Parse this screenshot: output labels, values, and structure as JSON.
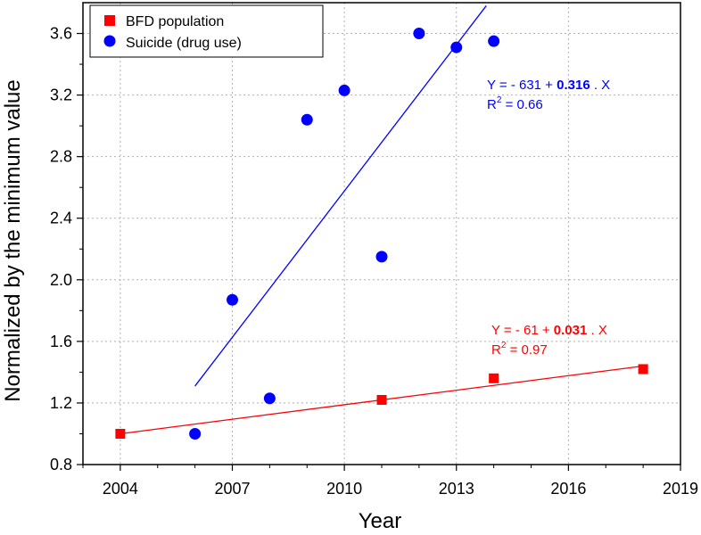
{
  "chart_data": {
    "type": "scatter",
    "xlabel": "Year",
    "ylabel": "Normalized by the minimum value",
    "xlim": [
      2003,
      2019
    ],
    "ylim": [
      0.8,
      3.8
    ],
    "xticks": [
      2004,
      2007,
      2010,
      2013,
      2016,
      2019
    ],
    "yticks": [
      0.8,
      1.2,
      1.6,
      2.0,
      2.4,
      2.8,
      3.2,
      3.6
    ],
    "grid": true,
    "legend_position": "top-left",
    "series": [
      {
        "name": "BFD population",
        "marker": "square",
        "color": "#ff0000",
        "x": [
          2004,
          2011,
          2014,
          2018
        ],
        "y": [
          1.0,
          1.22,
          1.36,
          1.42
        ],
        "fit": {
          "x": [
            2004,
            2018
          ],
          "y": [
            1.0,
            1.44
          ],
          "eq_prefix": "Y = - 61 + ",
          "eq_slope": "0.031",
          "eq_suffix": " . X",
          "r2_label": "R",
          "r2_sup": "2",
          "r2_value": " = 0.97"
        }
      },
      {
        "name": "Suicide (drug use)",
        "marker": "circle",
        "color": "#0000ff",
        "x": [
          2006,
          2007,
          2008,
          2009,
          2010,
          2011,
          2012,
          2013,
          2014
        ],
        "y": [
          1.0,
          1.87,
          1.23,
          3.04,
          3.23,
          2.15,
          3.6,
          3.51,
          3.55
        ],
        "fit": {
          "x": [
            2006,
            2013.8
          ],
          "y": [
            1.31,
            3.78
          ],
          "eq_prefix": "Y = - 631 + ",
          "eq_slope": "0.316",
          "eq_suffix": " . X",
          "r2_label": "R",
          "r2_sup": "2",
          "r2_value": " = 0.66"
        }
      }
    ]
  }
}
